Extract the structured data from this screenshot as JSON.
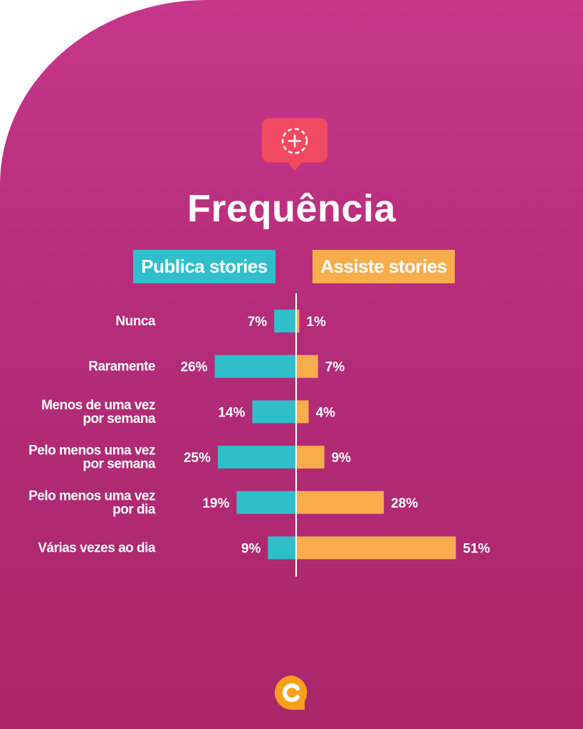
{
  "title": "Frequência",
  "legend": {
    "publica": "Publica stories",
    "assiste": "Assiste stories"
  },
  "colors": {
    "publica": "#2ebfcb",
    "assiste": "#f8ad4d",
    "background": "#b42c79",
    "icon": "#f24a63",
    "logo": "#f8a01e"
  },
  "icons": [
    "add-story-icon",
    "brand-logo-icon"
  ],
  "chart_data": {
    "type": "bar",
    "orientation": "horizontal-diverging",
    "title": "Frequência",
    "categories": [
      [
        "Nunca"
      ],
      [
        "Raramente"
      ],
      [
        "Menos de uma vez",
        "por semana"
      ],
      [
        "Pelo menos uma vez",
        "por semana"
      ],
      [
        "Pelo menos uma vez",
        "por dia"
      ],
      [
        "Várias vezes ao dia"
      ]
    ],
    "series": [
      {
        "name": "Publica stories",
        "values": [
          7,
          26,
          14,
          25,
          19,
          9
        ],
        "labels": [
          "7%",
          "26%",
          "14%",
          "25%",
          "19%",
          "9%"
        ]
      },
      {
        "name": "Assiste stories",
        "values": [
          1,
          7,
          4,
          9,
          28,
          51
        ],
        "labels": [
          "1%",
          "7%",
          "4%",
          "9%",
          "28%",
          "51%"
        ]
      }
    ],
    "unit": "%",
    "grid": false
  }
}
